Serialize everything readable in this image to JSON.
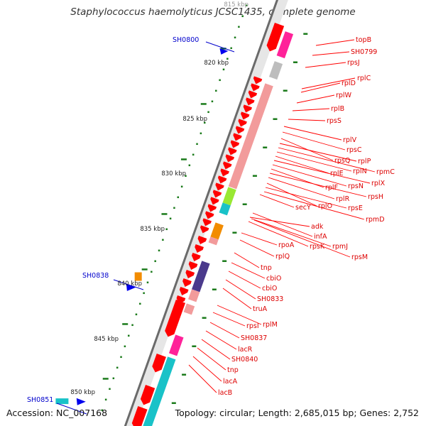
{
  "title": "Staphylococcus haemolyticus JCSC1435, complete genome",
  "accession": "Accession: NC_007168",
  "summary": "Topology: circular; Length: 2,685,015 bp; Genes: 2,752",
  "colors": {
    "gene_red": "#ff0000",
    "label_red": "#dd0000",
    "label_blue": "#0000cc",
    "backbone": "#6a6a6a",
    "tick_green": "#1a7a1a",
    "pink": "#ff2299",
    "salmon": "#f29b9b",
    "cyan": "#19c2c8",
    "orange": "#f28c00",
    "purple": "#4b3a8c",
    "lime": "#99e833",
    "gray": "#bdbdbd"
  },
  "scale_labels": [
    "815 kbp",
    "820 kbp",
    "825 kbp",
    "830 kbp",
    "835 kbp",
    "840 kbp",
    "845 kbp",
    "850 kbp"
  ],
  "outer_labels": [
    "SH0800",
    "SH0838",
    "SH0851"
  ],
  "inner_labels": [
    "topB",
    "SH0799",
    "rpsJ",
    "rplC",
    "rplD",
    "rplW",
    "rplB",
    "rpsS",
    "rplV",
    "rpsC",
    "rpsQ",
    "rplP",
    "rpmC",
    "rplN",
    "rplE",
    "rplX",
    "rpsN",
    "rplF",
    "rpsH",
    "rplR",
    "secY",
    "rplO",
    "rpsE",
    "rpmD",
    "adk",
    "infA",
    "rpsK",
    "rpmJ",
    "rpoA",
    "rplQ",
    "rpsM",
    "tnp",
    "cbiO",
    "cbiO",
    "SH0833",
    "truA",
    "rpsI",
    "rplM",
    "SH0837",
    "lacR",
    "SH0840",
    "tnp",
    "lacA",
    "lacB"
  ]
}
